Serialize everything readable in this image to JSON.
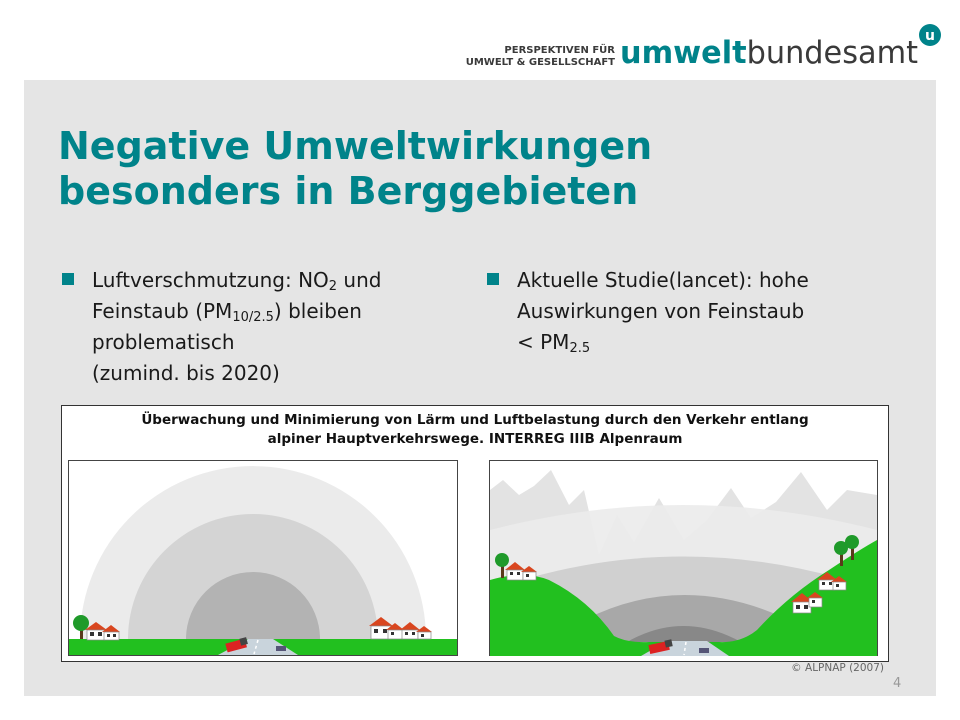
{
  "header": {
    "tagline_line1": "PERSPEKTIVEN FÜR",
    "tagline_line2": "UMWELT & GESELLSCHAFT",
    "logo_word_bold": "umwelt",
    "logo_word_regular": "bundesamt",
    "logo_badge": "u"
  },
  "slide": {
    "title_line1": "Negative Umweltwirkungen",
    "title_line2": "besonders in Berggebieten"
  },
  "bullets_left": {
    "line1_text": "Luftverschmutzung: NO",
    "line1_sub": "2",
    "line1_after": " und",
    "line2_text": "Feinstaub (PM",
    "line2_sub": "10/2.5",
    "line2_after": ") bleiben",
    "line3_text": "problematisch",
    "line4_text": "(zumind. bis 2020)"
  },
  "bullets_right": {
    "line1_text": "Aktuelle Studie(lancet): hohe",
    "line2_text": "Auswirkungen von Feinstaub",
    "line3_text": "< PM",
    "line3_sub": "2.5"
  },
  "figure": {
    "caption_line1": "Überwachung und Minimierung von Lärm und Luftbelastung durch den Verkehr entlang",
    "caption_line2": "alpiner Hauptverkehrswege. INTERREG IIIB Alpenraum"
  },
  "footer": {
    "credit": "© ALPNAP (2007)",
    "page_number": "4"
  },
  "colors": {
    "brand_teal": "#00838a",
    "panel_gray": "#e5e5e5",
    "grass_green": "#22c01f"
  }
}
